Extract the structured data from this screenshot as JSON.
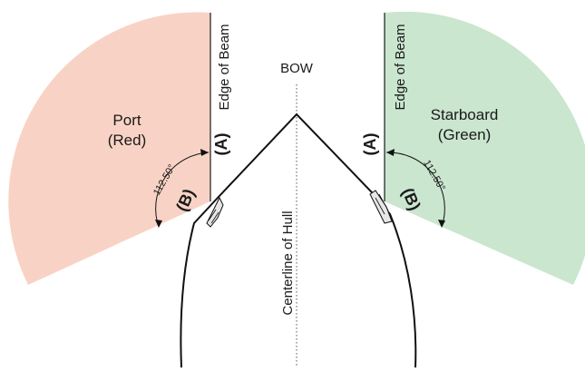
{
  "bow_label": "BOW",
  "centerline_label": "Centerline of Hull",
  "port": {
    "line1": "Port",
    "line2": "(Red)",
    "edge_label": "Edge of Beam",
    "label_a": "(A)",
    "label_b": "(B)",
    "angle_label": "112.50°",
    "color": "#f8d3c5"
  },
  "starboard": {
    "line1": "Starboard",
    "line2": "(Green)",
    "edge_label": "Edge of Beam",
    "label_a": "(A)",
    "label_b": "(B)",
    "angle_label": "112.50°",
    "color": "#cae6cf"
  },
  "sector_angle_deg": 112.5
}
